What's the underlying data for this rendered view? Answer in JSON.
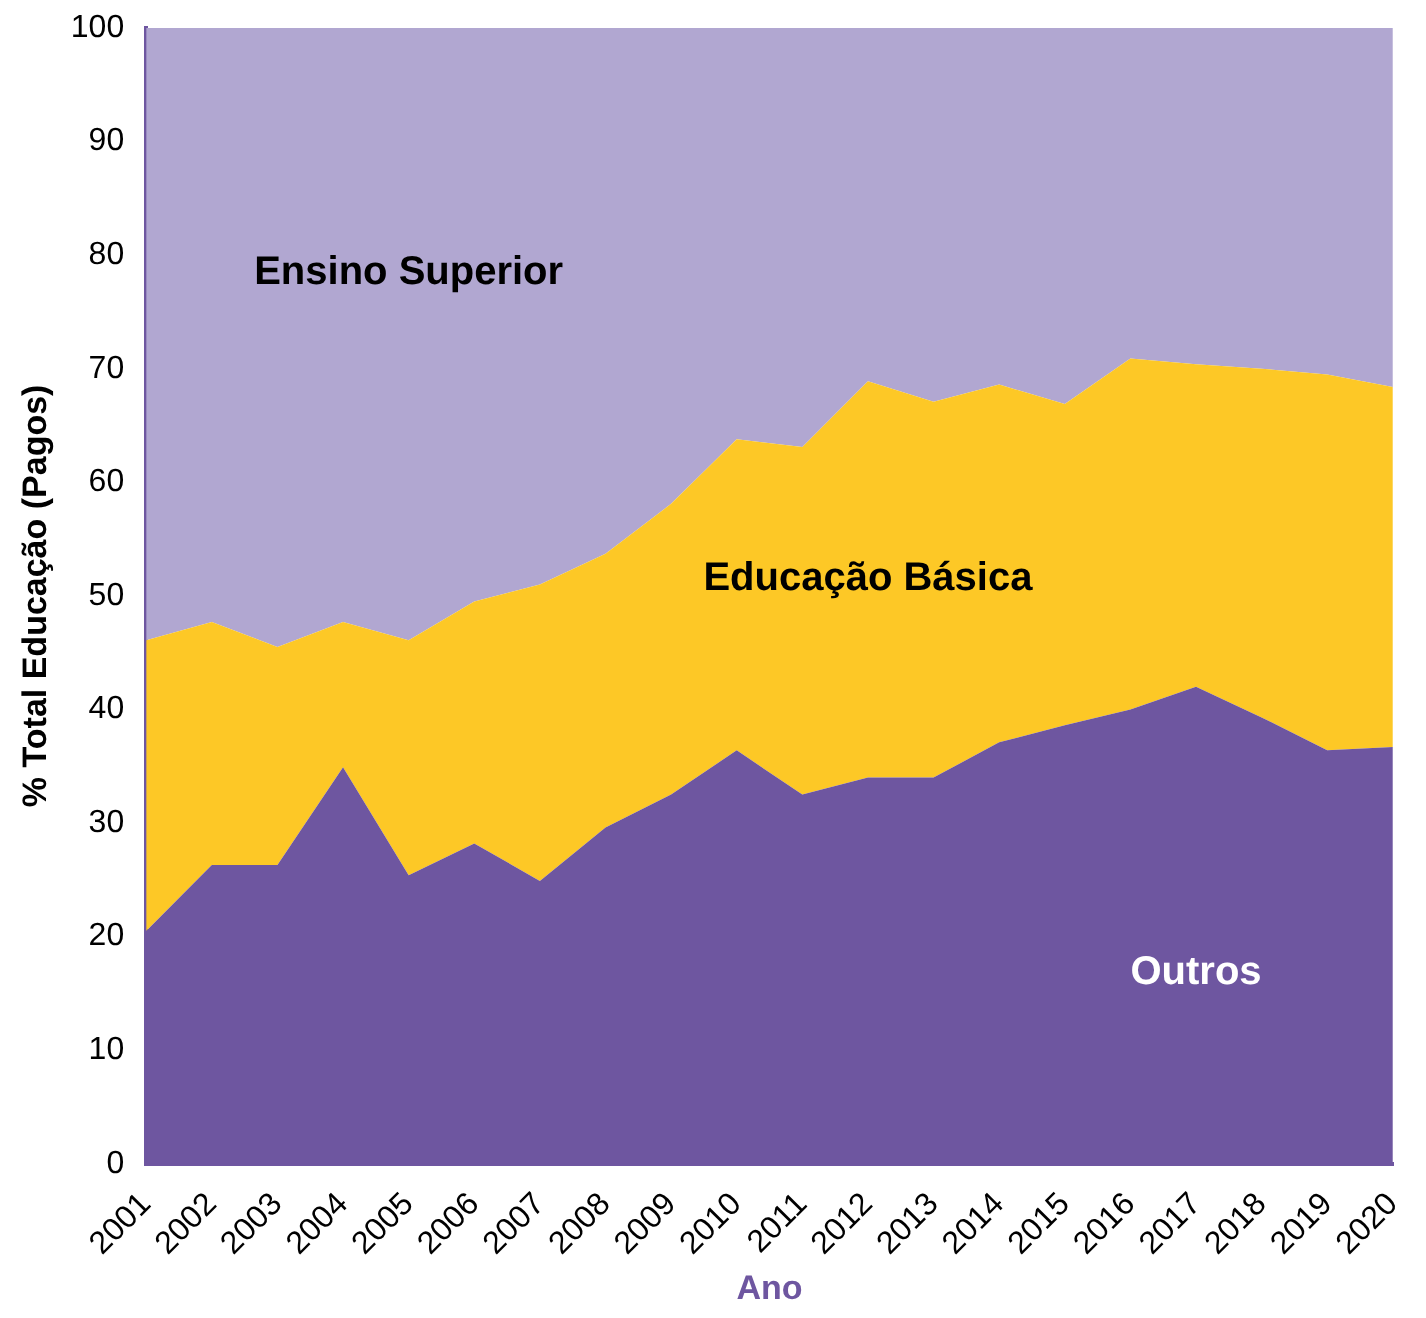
{
  "chart_data": {
    "type": "area",
    "stacked": true,
    "xlabel": "Ano",
    "ylabel": "% Total Educação (Pagos)",
    "x": [
      2001,
      2002,
      2003,
      2004,
      2005,
      2006,
      2007,
      2008,
      2009,
      2010,
      2011,
      2012,
      2013,
      2014,
      2015,
      2016,
      2017,
      2018,
      2019,
      2020
    ],
    "xlim": [
      2001,
      2020
    ],
    "xticks": [
      2001,
      2002,
      2003,
      2004,
      2005,
      2006,
      2007,
      2008,
      2009,
      2010,
      2011,
      2012,
      2013,
      2014,
      2015,
      2016,
      2017,
      2018,
      2019,
      2020
    ],
    "ylim": [
      0,
      100
    ],
    "yticks": [
      0,
      10,
      20,
      30,
      40,
      50,
      60,
      70,
      80,
      90,
      100
    ],
    "grid": false,
    "legend": false,
    "series": [
      {
        "name": "Outros",
        "color": "#6e56a0",
        "values": [
          20.5,
          26.3,
          26.3,
          34.9,
          25.4,
          28.2,
          24.9,
          29.6,
          32.5,
          36.4,
          32.5,
          34,
          34,
          37.1,
          38.6,
          40,
          42,
          39.3,
          36.4,
          36.7
        ]
      },
      {
        "name": "Educação Básica",
        "color": "#fdc826",
        "values": [
          25.6,
          21.4,
          19.2,
          12.8,
          20.7,
          21.3,
          26.1,
          24.1,
          25.6,
          27.4,
          30.6,
          34.9,
          33.1,
          31.5,
          28.3,
          30.9,
          28.4,
          30.7,
          33.1,
          31.7
        ]
      },
      {
        "name": "Ensino Superior",
        "color": "#b1a7d1",
        "values": [
          53.9,
          52.3,
          54.5,
          52.3,
          53.9,
          50.5,
          49,
          46.3,
          41.9,
          36.2,
          36.9,
          31.1,
          32.9,
          31.4,
          33.1,
          29.1,
          29.6,
          30,
          30.5,
          31.6
        ]
      }
    ]
  }
}
